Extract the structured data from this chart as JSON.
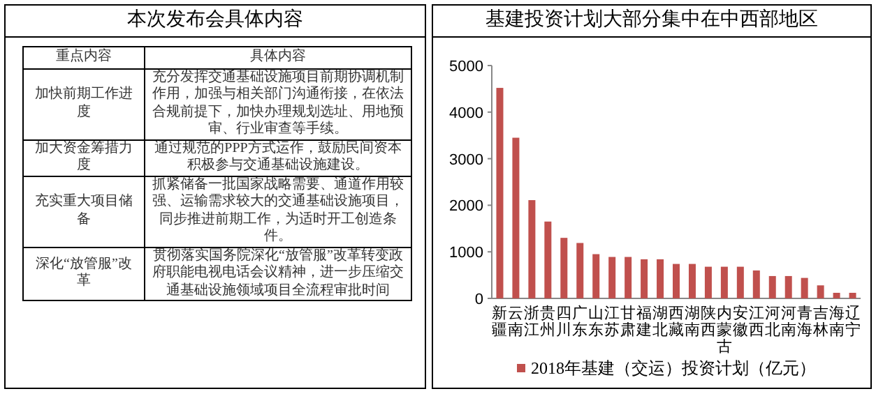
{
  "chart_data": [
    {
      "type": "other",
      "title": "本次发布会具体内容",
      "annotations": [
        "重点内容",
        "具体内容",
        "加快前期工作进度",
        "充分发挥交通基础设施项目前期协调机制作用，加强与相关部门沟通衔接，在依法合规前提下，加快办理规划选址、用地预审、行业审查等手续。",
        "加大资金筹措力度",
        "通过规范的PPP方式运作，鼓励民间资本积极参与交通基础设施建设。",
        "充实重大项目储备",
        "抓紧储备一批国家战略需要、通道作用较强、运输需求较大的交通基础设施项目，同步推进前期工作，为适时开工创造条件。",
        "深化“放管服”改革",
        "贯彻落实国务院深化“放管服”改革转变政府职能电视电话会议精神，进一步压缩交通基础设施领域项目全流程审批时间"
      ]
    },
    {
      "type": "bar",
      "title": "基建投资计划大部分集中在中西部地区",
      "categories": [
        "新疆",
        "云南",
        "浙江",
        "贵州",
        "四川",
        "广东",
        "山东",
        "江苏",
        "甘肃",
        "福建",
        "湖北",
        "西藏",
        "湖南",
        "陕西",
        "内蒙古",
        "安徽",
        "江西",
        "河北",
        "河南",
        "青海",
        "吉林",
        "海南",
        "辽宁"
      ],
      "series": [
        {
          "name": "2018年基建（交运）投资计划（亿元）",
          "color": "#c0504d",
          "values": [
            4520,
            3450,
            2110,
            1650,
            1300,
            1190,
            950,
            890,
            890,
            840,
            840,
            740,
            740,
            680,
            680,
            680,
            600,
            480,
            480,
            440,
            280,
            120,
            120
          ]
        }
      ],
      "ylim": [
        0,
        5000
      ],
      "yticks": [
        0,
        1000,
        2000,
        3000,
        4000,
        5000
      ],
      "grid": false,
      "legend": "bottom"
    }
  ]
}
